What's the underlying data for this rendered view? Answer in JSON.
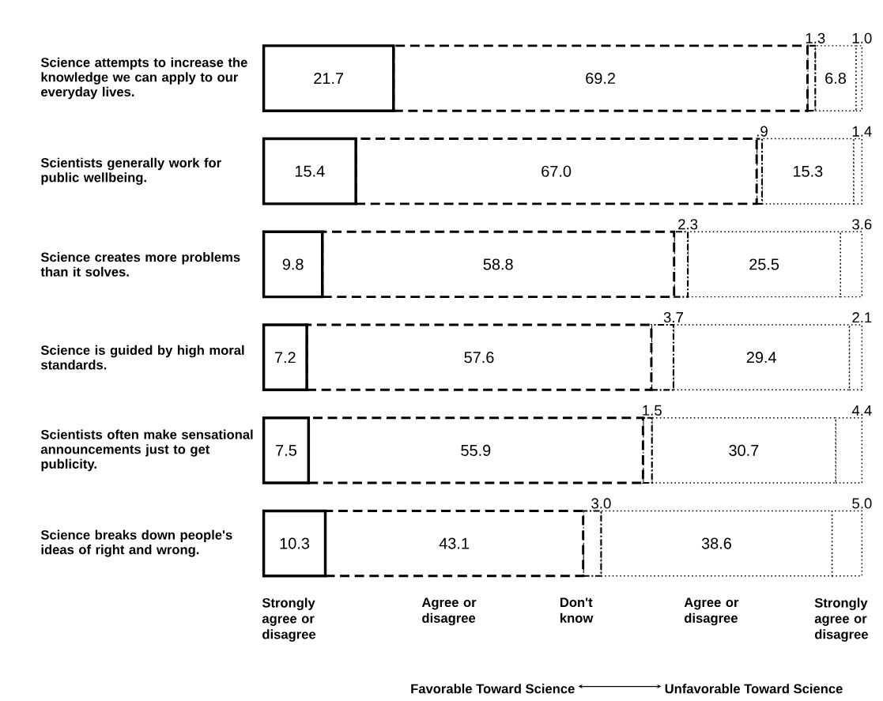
{
  "chart_data": {
    "type": "bar",
    "orientation": "horizontal",
    "stacked": true,
    "categories": [
      "Science attempts to increase the knowledge we can apply to our everyday lives.",
      "Scientists generally work for public wellbeing.",
      "Science creates more problems than it solves.",
      "Science is guided by high moral standards.",
      "Scientists often make sensational announcements just to get publicity.",
      "Science breaks down people's ideas of right and wrong."
    ],
    "series": [
      {
        "name": "Strongly agree or disagree",
        "color": "#000000",
        "line_style": "solid",
        "values": [
          21.7,
          15.4,
          9.8,
          7.2,
          7.5,
          10.3
        ],
        "value_labels": [
          "21.7",
          "15.4",
          "9.8",
          "7.2",
          "7.5",
          "10.3"
        ]
      },
      {
        "name": "Agree or disagree",
        "color": "#000000",
        "line_style": "dashed",
        "values": [
          69.2,
          67.0,
          58.8,
          57.6,
          55.9,
          43.1
        ],
        "value_labels": [
          "69.2",
          "67.0",
          "58.8",
          "57.6",
          "55.9",
          "43.1"
        ]
      },
      {
        "name": "Don't know",
        "color": "#000000",
        "line_style": "dashdot",
        "values": [
          1.3,
          0.9,
          2.3,
          3.7,
          1.5,
          3.0
        ],
        "value_labels": [
          "1.3",
          ".9",
          "2.3",
          "3.7",
          "1.5",
          "3.0"
        ]
      },
      {
        "name": "Agree or disagree",
        "color": "#000000",
        "line_style": "dotted",
        "values": [
          6.8,
          15.3,
          25.5,
          29.4,
          30.7,
          38.6
        ],
        "value_labels": [
          "6.8",
          "15.3",
          "25.5",
          "29.4",
          "30.7",
          "38.6"
        ]
      },
      {
        "name": "Strongly agree or disagree",
        "color": "#000000",
        "line_style": "dotted",
        "values": [
          1.0,
          1.4,
          3.6,
          2.1,
          4.4,
          5.0
        ],
        "value_labels": [
          "1.0",
          "1.4",
          "3.6",
          "2.1",
          "4.4",
          "5.0"
        ]
      }
    ],
    "annotations": [
      "Favorable Toward Science",
      "Unfavorable Toward Science"
    ]
  }
}
